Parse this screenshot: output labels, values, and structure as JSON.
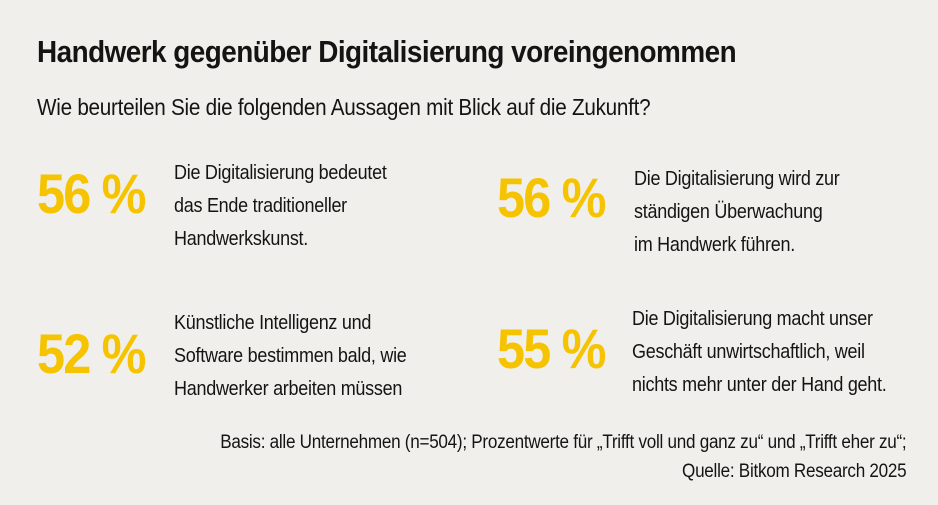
{
  "chart_data": {
    "type": "table",
    "title": "Handwerk gegenüber Digitalisierung voreingenommen",
    "subtitle": "Wie beurteilen Sie die folgenden Aussagen mit Blick auf die Zukunft?",
    "stats": [
      {
        "value": 56,
        "value_label": "56 %",
        "text": "Die Digitalisierung bedeutet\ndas Ende traditioneller\nHandwerkskunst."
      },
      {
        "value": 56,
        "value_label": "56 %",
        "text": "Die Digitalisierung wird zur\nständigen Überwachung\nim Handwerk führen."
      },
      {
        "value": 52,
        "value_label": "52 %",
        "text": "Künstliche Intelligenz und\nSoftware bestimmen bald, wie\nHandwerker arbeiten müssen"
      },
      {
        "value": 55,
        "value_label": "55 %",
        "text": "Die Digitalisierung macht unser\nGeschäft unwirtschaftlich, weil\nnichts mehr unter der Hand geht."
      }
    ],
    "footer": {
      "basis": "Basis: alle Unternehmen (n=504); Prozentwerte für „Trifft voll und ganz zu“ und „Trifft eher zu“;",
      "source": "Quelle: Bitkom Research 2025"
    },
    "accent_color": "#f5c300"
  }
}
